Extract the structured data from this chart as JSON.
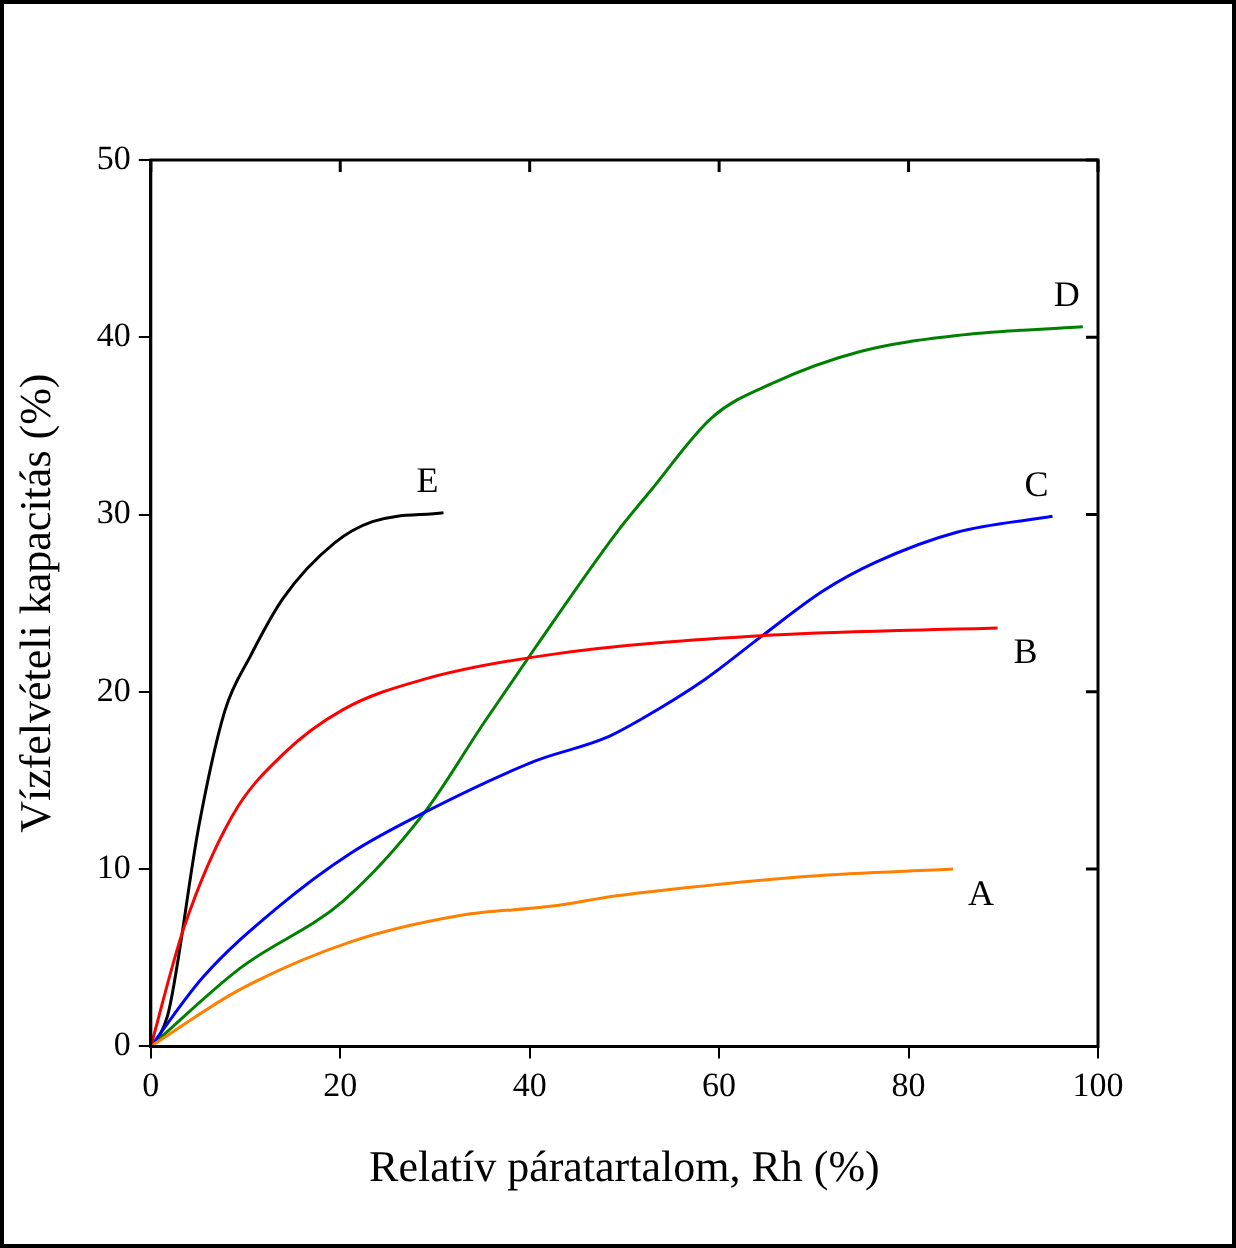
{
  "chart_data": {
    "type": "line",
    "xlabel": "Relatív páratartalom, Rh (%)",
    "ylabel": "Vízfelvételi kapacitás (%)",
    "xlim": [
      0,
      100
    ],
    "xticks": [
      0,
      20,
      40,
      60,
      80,
      100
    ],
    "ylim": [
      0,
      50
    ],
    "yticks": [
      0,
      10,
      20,
      30,
      40,
      50
    ],
    "grid": false,
    "legend": false,
    "marker": "none",
    "line_style": "solid",
    "series": [
      {
        "name": "A",
        "color": "#ff8000",
        "x": [
          0,
          9.4,
          21.1,
          32.8,
          42.2,
          49.2,
          53.9,
          69.5,
          84.7
        ],
        "values": [
          0,
          3.2,
          5.9,
          7.4,
          7.9,
          8.5,
          8.8,
          9.6,
          10
        ]
      },
      {
        "name": "B",
        "color": "#ff0000",
        "x": [
          0,
          3.5,
          8.6,
          14,
          20.3,
          28.8,
          42.2,
          65.6,
          89.4
        ],
        "values": [
          0,
          6.7,
          13,
          16.5,
          19,
          20.7,
          22.1,
          23.2,
          23.6
        ]
      },
      {
        "name": "C",
        "color": "#0000ff",
        "x": [
          0,
          5.5,
          13.3,
          21.1,
          28.9,
          40.6,
          48,
          51.9,
          58.5,
          64.4,
          71,
          76.5,
          85.1,
          95.2
        ],
        "values": [
          0,
          3.9,
          7.8,
          10.9,
          13.2,
          16.1,
          17.4,
          18.5,
          20.7,
          23.1,
          25.7,
          27.3,
          29,
          29.9
        ]
      },
      {
        "name": "D",
        "color": "#008000",
        "x": [
          0,
          9.4,
          20.3,
          28.9,
          35.1,
          40.6,
          49.2,
          52.7,
          59.3,
          65.6,
          74.9,
          85.1,
          98.4
        ],
        "values": [
          0,
          4.4,
          8.2,
          13.2,
          18.2,
          22.5,
          29,
          31.3,
          35.5,
          37.4,
          39.2,
          40.1,
          40.6
        ]
      },
      {
        "name": "E",
        "color": "#000000",
        "x": [
          0,
          0.8,
          1.9,
          5.1,
          7.8,
          10.5,
          14,
          19.4,
          23.4,
          30.9
        ],
        "values": [
          0,
          0.5,
          2,
          12.5,
          18.9,
          22,
          25.3,
          28.4,
          29.6,
          30.1
        ]
      }
    ]
  }
}
